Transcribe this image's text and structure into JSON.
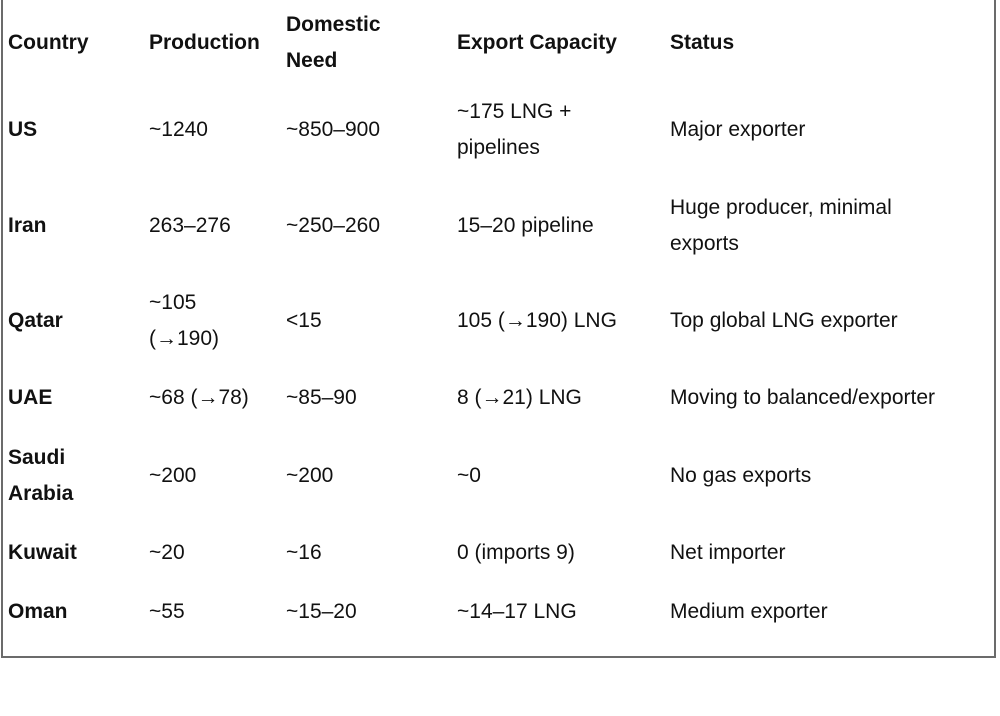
{
  "table": {
    "headers": {
      "country": "Country",
      "production": "Production",
      "domestic_need_line1": "Domestic",
      "domestic_need_line2": "Need",
      "export_capacity": "Export Capacity",
      "status": "Status"
    },
    "rows": [
      {
        "country": "US",
        "production": "~1240",
        "domestic_need": "~850–900",
        "export_capacity": "~175 LNG + pipelines",
        "status": "Major exporter"
      },
      {
        "country": "Iran",
        "production": "263–276",
        "domestic_need": "~250–260",
        "export_capacity": "15–20 pipeline",
        "status": "Huge producer, minimal exports"
      },
      {
        "country": "Qatar",
        "production": "~105 (→190)",
        "domestic_need": "<15",
        "export_capacity": "105 (→190) LNG",
        "status": "Top global LNG exporter"
      },
      {
        "country": "UAE",
        "production": "~68 (→78)",
        "domestic_need": "~85–90",
        "export_capacity": "8 (→21) LNG",
        "status": "Moving to balanced/exporter"
      },
      {
        "country": "Saudi Arabia",
        "production": "~200",
        "domestic_need": "~200",
        "export_capacity": "~0",
        "status": "No gas exports"
      },
      {
        "country": "Kuwait",
        "production": "~20",
        "domestic_need": "~16",
        "export_capacity": "0 (imports 9)",
        "status": "Net importer"
      },
      {
        "country": "Oman",
        "production": "~55",
        "domestic_need": "~15–20",
        "export_capacity": "~14–17 LNG",
        "status": "Medium exporter"
      }
    ]
  }
}
